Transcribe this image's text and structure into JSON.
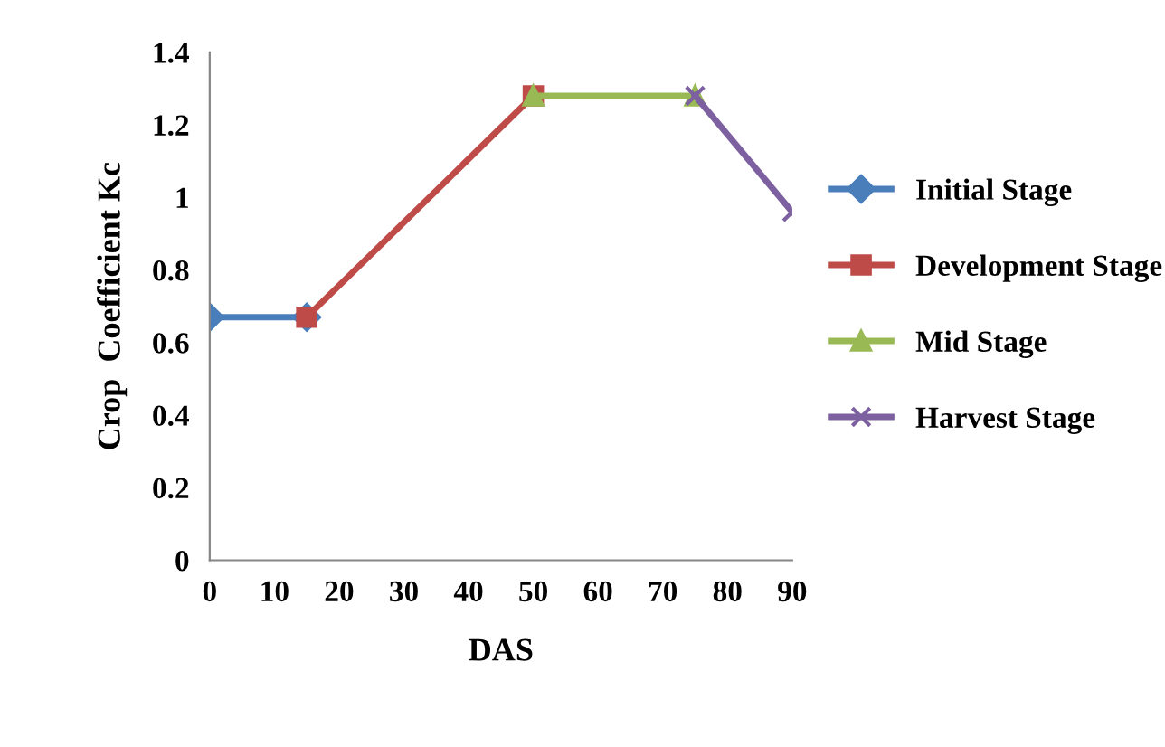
{
  "chart_data": {
    "type": "line",
    "xlabel": "DAS",
    "ylabel": "Crop  Coefficient Kc",
    "xlim": [
      0,
      90
    ],
    "xticks": [
      0,
      10,
      20,
      30,
      40,
      50,
      60,
      70,
      80,
      90
    ],
    "ylim": [
      0,
      1.4
    ],
    "yticks": [
      0,
      0.2,
      0.4,
      0.6,
      0.8,
      1,
      1.2,
      1.4
    ],
    "grid": false,
    "legend": "right",
    "series": [
      {
        "name": "Initial Stage",
        "color": "#4a7ebb",
        "marker": "diamond",
        "x": [
          0,
          15
        ],
        "values": [
          0.67,
          0.67
        ]
      },
      {
        "name": "Development Stage",
        "color": "#be4b48",
        "marker": "square",
        "x": [
          15,
          50
        ],
        "values": [
          0.67,
          1.28
        ]
      },
      {
        "name": "Mid Stage",
        "color": "#98b954",
        "marker": "triangle",
        "x": [
          50,
          75
        ],
        "values": [
          1.28,
          1.28
        ]
      },
      {
        "name": "Harvest Stage",
        "color": "#7d60a0",
        "marker": "cross",
        "x": [
          75,
          90
        ],
        "values": [
          1.28,
          0.96
        ]
      }
    ]
  }
}
